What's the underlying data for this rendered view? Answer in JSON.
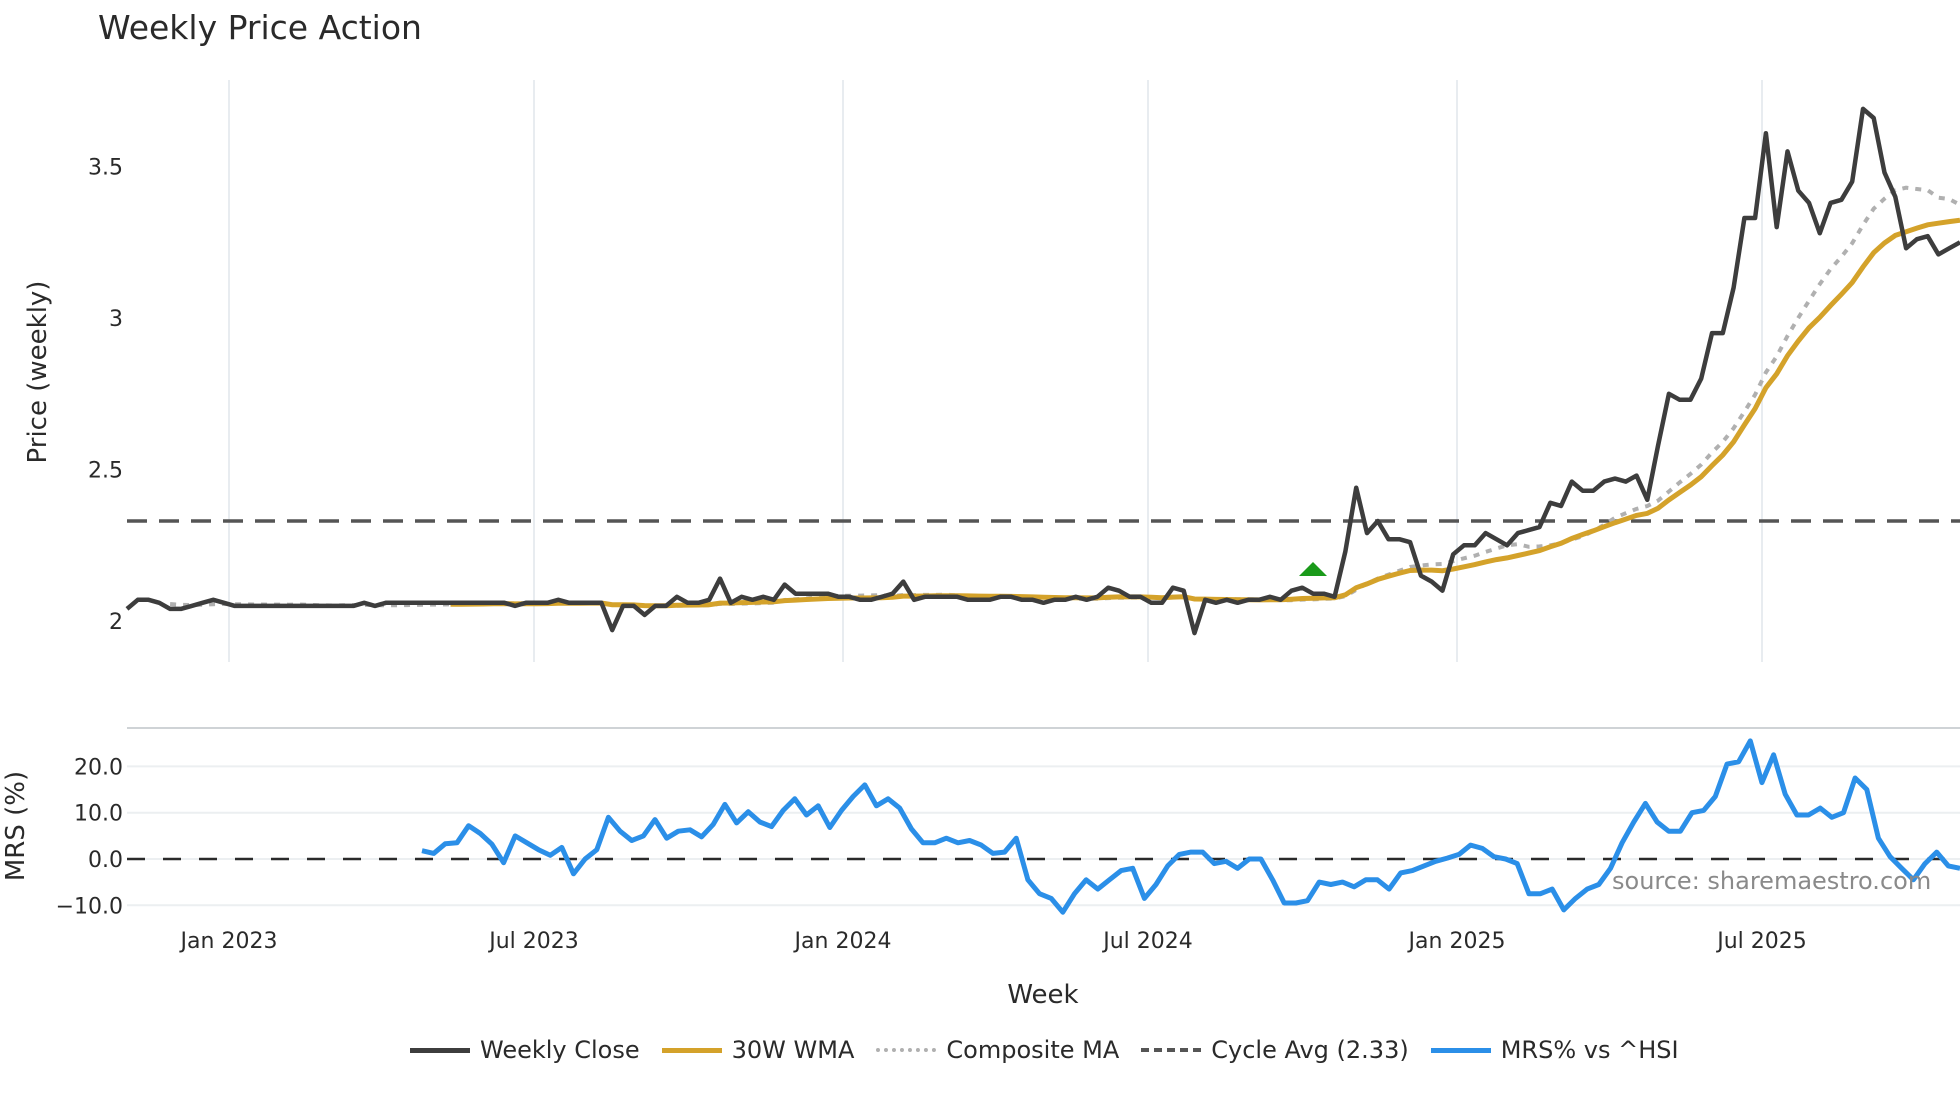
{
  "title": "Weekly Price Action",
  "colors": {
    "close": "#3d3d3d",
    "wma": "#d4a22a",
    "composite": "#b0b0b0",
    "cycle": "#555555",
    "mrs": "#2b8fe8",
    "signal": "#1a9a1a",
    "grid": "#e8ecf0"
  },
  "price_panel": {
    "ylabel": "Price (weekly)",
    "yticks": [
      "2",
      "2.5",
      "3",
      "3.5"
    ]
  },
  "mrs_panel": {
    "ylabel": "MRS (%)",
    "yticks": [
      "−10.0",
      "0.0",
      "10.0",
      "20.0"
    ]
  },
  "xaxis": {
    "label": "Week",
    "ticks": [
      "Jan 2023",
      "Jul 2023",
      "Jan 2024",
      "Jul 2024",
      "Jan 2025",
      "Jul 2025"
    ]
  },
  "watermark": "source: sharemaestro.com",
  "legend": [
    {
      "label": "Weekly Close",
      "style": "solid",
      "color": "#3d3d3d"
    },
    {
      "label": "30W WMA",
      "style": "solid",
      "color": "#d4a22a"
    },
    {
      "label": "Composite MA",
      "style": "dotted",
      "color": "#b0b0b0"
    },
    {
      "label": "Cycle Avg (2.33)",
      "style": "dashed",
      "color": "#555555"
    },
    {
      "label": "MRS% vs ^HSI",
      "style": "solid",
      "color": "#2b8fe8"
    }
  ],
  "chart_data": [
    {
      "type": "line",
      "title": "Weekly Price Action",
      "xlabel": "Week",
      "ylabel": "Price (weekly)",
      "ylim": [
        1.87,
        3.78
      ],
      "x_ticks": [
        "Jan 2023",
        "Jul 2023",
        "Jan 2024",
        "Jul 2024",
        "Jan 2025",
        "Jul 2025"
      ],
      "grid": true,
      "legend_position": "bottom",
      "annotations": [
        {
          "type": "hline",
          "label": "Cycle Avg (2.33)",
          "value": 2.33,
          "style": "dashed"
        },
        {
          "type": "marker",
          "shape": "triangle-up",
          "color": "#1a9a1a",
          "x_approx": "Oct 2024",
          "y": 2.18
        }
      ],
      "x_start": "Nov 2022",
      "x_step": "1 week",
      "series": [
        {
          "name": "Weekly Close",
          "values": [
            2.04,
            2.07,
            2.07,
            2.06,
            2.04,
            2.04,
            2.05,
            2.06,
            2.07,
            2.06,
            2.05,
            2.05,
            2.05,
            2.05,
            2.05,
            2.05,
            2.05,
            2.05,
            2.05,
            2.05,
            2.05,
            2.05,
            2.06,
            2.05,
            2.06,
            2.06,
            2.06,
            2.06,
            2.06,
            2.06,
            2.06,
            2.06,
            2.06,
            2.06,
            2.06,
            2.06,
            2.05,
            2.06,
            2.06,
            2.06,
            2.07,
            2.06,
            2.06,
            2.06,
            2.06,
            1.97,
            2.05,
            2.05,
            2.02,
            2.05,
            2.05,
            2.08,
            2.06,
            2.06,
            2.07,
            2.14,
            2.06,
            2.08,
            2.07,
            2.08,
            2.07,
            2.12,
            2.09,
            2.09,
            2.09,
            2.09,
            2.08,
            2.08,
            2.07,
            2.07,
            2.08,
            2.09,
            2.13,
            2.07,
            2.08,
            2.08,
            2.08,
            2.08,
            2.07,
            2.07,
            2.07,
            2.08,
            2.08,
            2.07,
            2.07,
            2.06,
            2.07,
            2.07,
            2.08,
            2.07,
            2.08,
            2.11,
            2.1,
            2.08,
            2.08,
            2.06,
            2.06,
            2.11,
            2.1,
            1.96,
            2.07,
            2.06,
            2.07,
            2.06,
            2.07,
            2.07,
            2.08,
            2.07,
            2.1,
            2.11,
            2.09,
            2.09,
            2.08,
            2.23,
            2.44,
            2.29,
            2.33,
            2.27,
            2.27,
            2.26,
            2.15,
            2.13,
            2.1,
            2.22,
            2.25,
            2.25,
            2.29,
            2.27,
            2.25,
            2.29,
            2.3,
            2.31,
            2.39,
            2.38,
            2.46,
            2.43,
            2.43,
            2.46,
            2.47,
            2.46,
            2.48,
            2.4,
            2.58,
            2.75,
            2.73,
            2.73,
            2.8,
            2.95,
            2.95,
            3.1,
            3.33,
            3.33,
            3.61,
            3.3,
            3.55,
            3.42,
            3.38,
            3.28,
            3.38,
            3.39,
            3.45,
            3.69,
            3.66,
            3.48,
            3.4,
            3.23,
            3.26,
            3.27,
            3.21,
            3.23,
            3.25
          ]
        },
        {
          "name": "30W WMA",
          "start_index": 30,
          "values_summary": "flat ~2.06-2.08 through Sep 2024, rising to 2.17 by Nov 2024, 2.33 by Apr 2025, 2.60 by Jun 2025, 3.0 by Aug 2025, 3.33 at end"
        },
        {
          "name": "Composite MA",
          "values_summary": "tracks close smoothed; ~2.06-2.08 through Sep 2024, 2.20 Oct 2024, 2.35 Apr 2025, 2.98 Jul 2025, 3.33 Oct 2025, 3.27 at end"
        }
      ]
    },
    {
      "type": "line",
      "ylabel": "MRS (%)",
      "ylim": [
        -12,
        27
      ],
      "x_ticks": [
        "Jan 2023",
        "Jul 2023",
        "Jan 2024",
        "Jul 2024",
        "Jan 2025",
        "Jul 2025"
      ],
      "annotations": [
        {
          "type": "hline",
          "value": 0,
          "style": "dashed"
        }
      ],
      "series": [
        {
          "name": "MRS% vs ^HSI",
          "start": "May 2023",
          "values": [
            1.8,
            1.2,
            3.3,
            3.5,
            7.2,
            5.5,
            3.2,
            -0.8,
            5.0,
            3.5,
            2.0,
            0.8,
            2.5,
            -3.2,
            0.0,
            2.0,
            9.0,
            6.0,
            4.0,
            5.0,
            8.5,
            4.5,
            6.0,
            6.3,
            4.8,
            7.5,
            11.8,
            7.8,
            10.2,
            8.0,
            7.0,
            10.5,
            13.0,
            9.5,
            11.5,
            6.8,
            10.5,
            13.5,
            16.0,
            11.5,
            13.0,
            11.0,
            6.5,
            3.5,
            3.5,
            4.5,
            3.5,
            4.0,
            3.0,
            1.2,
            1.5,
            4.5,
            -4.5,
            -7.5,
            -8.5,
            -11.5,
            -7.5,
            -4.5,
            -6.5,
            -4.5,
            -2.5,
            -2.0,
            -8.5,
            -5.5,
            -1.5,
            1.0,
            1.5,
            1.5,
            -1.0,
            -0.5,
            -2.0,
            0.0,
            0.0,
            -4.5,
            -9.5,
            -9.5,
            -9.0,
            -5.0,
            -5.5,
            -5.0,
            -6.0,
            -4.5,
            -4.5,
            -6.5,
            -3.0,
            -2.5,
            -1.5,
            -0.5,
            0.2,
            1.0,
            3.0,
            2.3,
            0.5,
            0.0,
            -1.0,
            -7.5,
            -7.5,
            -6.5,
            -11.0,
            -8.5,
            -6.5,
            -5.5,
            -2.0,
            3.5,
            8.0,
            12.0,
            8.0,
            6.0,
            6.0,
            10.0,
            10.5,
            13.5,
            20.5,
            21.0,
            25.5,
            16.5,
            22.5,
            14.0,
            9.5,
            9.5,
            11.0,
            9.0,
            10.0,
            17.5,
            15.0,
            4.5,
            0.5,
            -2.0,
            -4.5,
            -1.0,
            1.5,
            -1.5,
            -2.0
          ]
        }
      ]
    }
  ]
}
